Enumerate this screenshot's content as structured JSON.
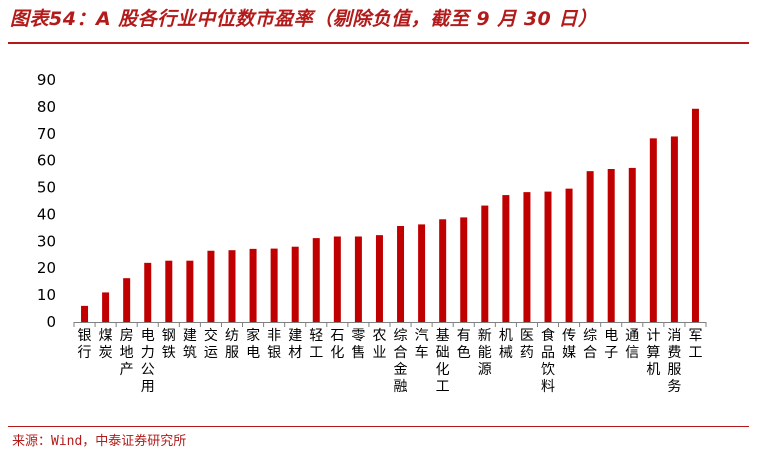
{
  "header": {
    "title": "图表54：A 股各行业中位数市盈率（剔除负值，截至 9 月 30 日）"
  },
  "footer": {
    "source": "来源：Wind，中泰证券研究所"
  },
  "colors": {
    "bar": "#c00000",
    "accent": "#b31b1b"
  },
  "chart_data": {
    "type": "bar",
    "title": "",
    "xlabel": "",
    "ylabel": "",
    "ylim": [
      0,
      90
    ],
    "yticks": [
      0,
      10,
      20,
      30,
      40,
      50,
      60,
      70,
      80,
      90
    ],
    "grid": false,
    "legend": "none",
    "categories": [
      "银行",
      "煤炭",
      "房地产",
      "电力公用",
      "钢铁",
      "建筑",
      "交运",
      "纺服",
      "家电",
      "非银",
      "建材",
      "轻工",
      "石化",
      "零售",
      "农业",
      "综合金融",
      "汽车",
      "基础化工",
      "有色",
      "新能源",
      "机械",
      "医药",
      "食品饮料",
      "传媒",
      "综合",
      "电子",
      "通信",
      "计算机",
      "消费服务",
      "军工"
    ],
    "values": [
      6.0,
      11.0,
      16.3,
      22.0,
      22.8,
      22.8,
      26.5,
      26.7,
      27.2,
      27.3,
      28.0,
      31.2,
      31.8,
      31.8,
      32.3,
      35.7,
      36.3,
      38.2,
      38.9,
      43.3,
      47.2,
      48.3,
      48.5,
      49.6,
      56.1,
      56.9,
      57.3,
      68.3,
      69.0,
      79.3
    ]
  }
}
